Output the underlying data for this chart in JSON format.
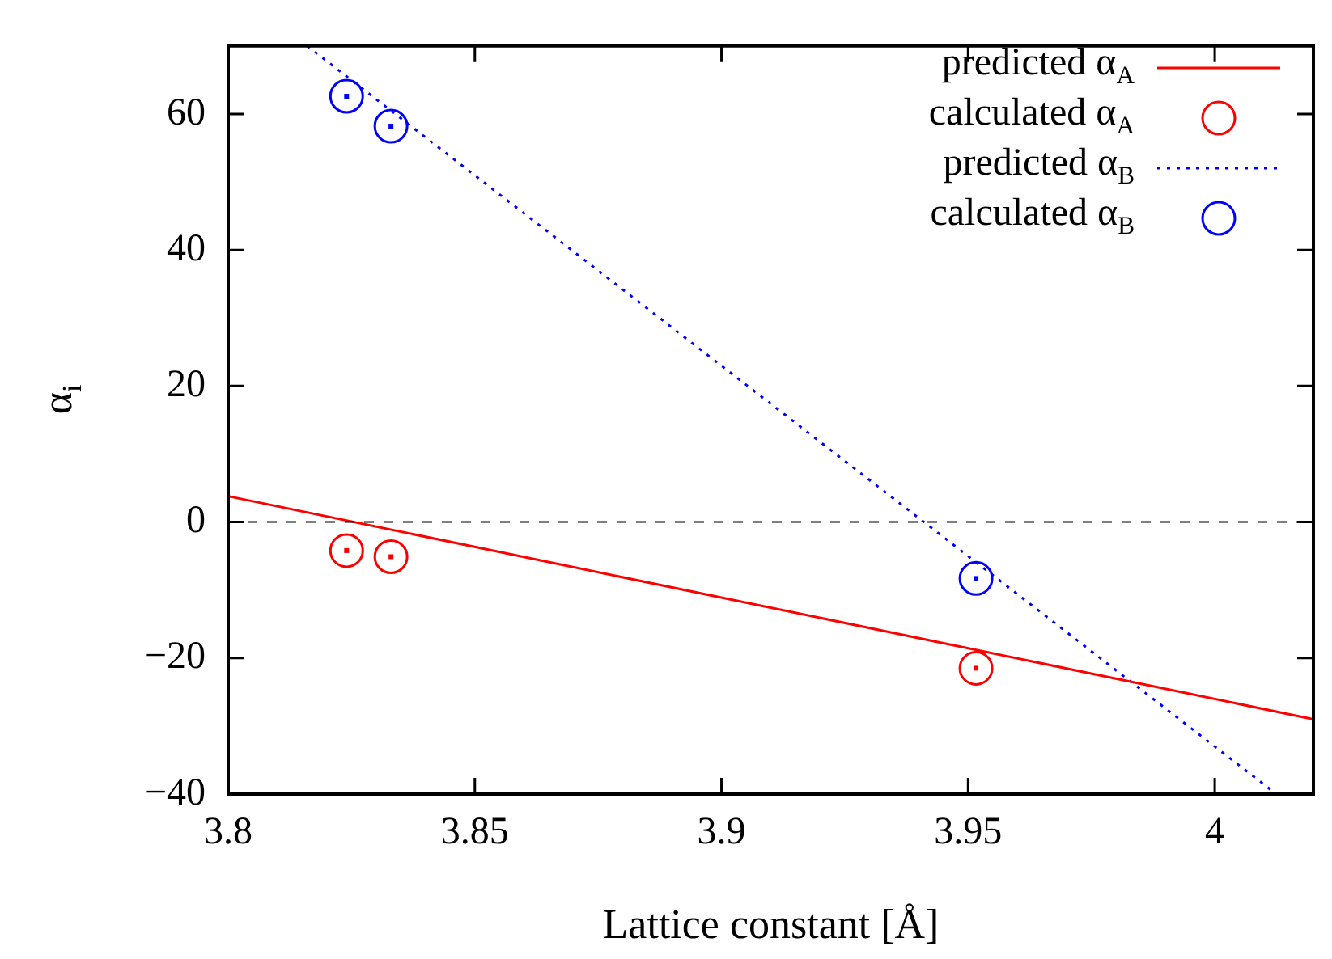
{
  "chart_data": {
    "type": "line",
    "xlabel": "Lattice constant [Å]",
    "ylabel": "α$_{i}$",
    "xlim": [
      3.8,
      4.02
    ],
    "xticks": [
      3.8,
      3.85,
      3.9,
      3.95,
      4
    ],
    "ylim": [
      -40,
      70
    ],
    "yticks": [
      -40,
      -20,
      0,
      20,
      40,
      60
    ],
    "grid": false,
    "legend": "top right",
    "ref_lines": [
      {
        "axis": "y",
        "value": 0,
        "color": "#000000",
        "line_style": "dashed"
      }
    ],
    "series": [
      {
        "name": "predicted α$_{A}$",
        "type": "line",
        "color": "#ff0000",
        "line_style": "solid",
        "marker": "none",
        "x": [
          3.8,
          4.02
        ],
        "values": [
          3.8,
          -29
        ]
      },
      {
        "name": "calculated α$_{A}$",
        "type": "scatter",
        "color": "#ff0000",
        "marker": "circle",
        "x": [
          3.824,
          3.833,
          3.9516
        ],
        "values": [
          -4.2,
          -5.1,
          -21.5
        ]
      },
      {
        "name": "predicted α$_{B}$",
        "type": "line",
        "color": "#0000ff",
        "line_style": "dotted",
        "marker": "none",
        "x": [
          3.816,
          4.0125
        ],
        "values": [
          70,
          -40
        ]
      },
      {
        "name": "calculated α$_{B}$",
        "type": "scatter",
        "color": "#0000ff",
        "marker": "circle",
        "x": [
          3.824,
          3.833,
          3.9516
        ],
        "values": [
          62.6,
          58.2,
          -8.3
        ]
      }
    ]
  }
}
